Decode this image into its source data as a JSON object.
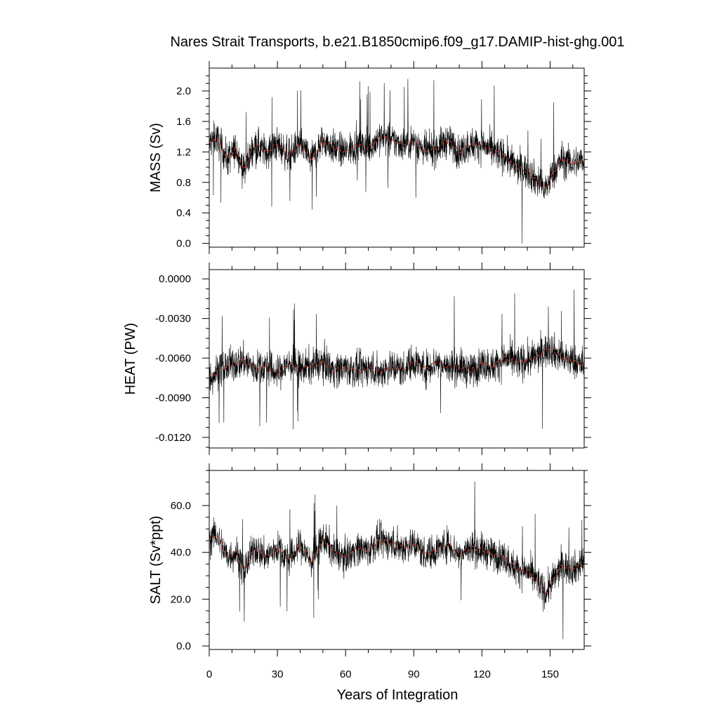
{
  "chart_data": {
    "type": "line",
    "title": "Nares Strait Transports, b.e21.B1850cmip6.f09_g17.DAMIP-hist-ghg.001",
    "xlabel": "Years of Integration",
    "xlim": [
      0,
      165
    ],
    "x_ticks": [
      "0",
      "30",
      "60",
      "90",
      "120",
      "150"
    ],
    "colors": {
      "raw": "#000000",
      "smoothed": "#c0392b"
    },
    "panels": [
      {
        "ylabel": "MASS (Sv)",
        "ylim": [
          -0.05,
          2.3
        ],
        "y_ticks": [
          "0.0",
          "0.4",
          "0.8",
          "1.2",
          "1.6",
          "2.0"
        ],
        "smoothed": {
          "x": [
            0,
            3,
            8,
            12,
            15,
            20,
            25,
            30,
            35,
            40,
            45,
            50,
            55,
            60,
            65,
            70,
            75,
            80,
            85,
            90,
            95,
            100,
            105,
            110,
            115,
            120,
            125,
            130,
            135,
            140,
            145,
            148,
            150,
            155,
            160,
            165
          ],
          "y": [
            1.3,
            1.4,
            1.1,
            1.25,
            0.95,
            1.3,
            1.2,
            1.3,
            1.15,
            1.3,
            1.1,
            1.35,
            1.25,
            1.2,
            1.3,
            1.25,
            1.4,
            1.35,
            1.3,
            1.35,
            1.2,
            1.25,
            1.35,
            1.2,
            1.3,
            1.3,
            1.2,
            1.15,
            1.0,
            0.95,
            0.8,
            0.7,
            0.85,
            1.1,
            1.05,
            1.1
          ]
        },
        "raw_noise": 0.22
      },
      {
        "ylabel": "HEAT (PW)",
        "ylim": [
          -0.0128,
          0.0007
        ],
        "y_ticks": [
          "-0.0120",
          "-0.0090",
          "-0.0060",
          "-0.0030",
          "0.0000"
        ],
        "smoothed": {
          "x": [
            0,
            5,
            10,
            15,
            20,
            25,
            30,
            35,
            40,
            45,
            50,
            55,
            60,
            65,
            70,
            75,
            80,
            85,
            90,
            95,
            100,
            105,
            110,
            115,
            120,
            125,
            130,
            135,
            140,
            145,
            150,
            155,
            160,
            165
          ],
          "y": [
            -0.0075,
            -0.0068,
            -0.0065,
            -0.0062,
            -0.0068,
            -0.0066,
            -0.0072,
            -0.0064,
            -0.0068,
            -0.0066,
            -0.0063,
            -0.0069,
            -0.0067,
            -0.007,
            -0.0067,
            -0.0071,
            -0.0066,
            -0.0069,
            -0.0062,
            -0.0068,
            -0.0063,
            -0.0067,
            -0.0066,
            -0.007,
            -0.0064,
            -0.0066,
            -0.006,
            -0.0063,
            -0.0062,
            -0.0058,
            -0.0052,
            -0.006,
            -0.0062,
            -0.0066
          ]
        },
        "raw_noise": 0.0013
      },
      {
        "ylabel": "SALT (Sv*ppt)",
        "ylim": [
          -1.5,
          75
        ],
        "y_ticks": [
          "0.0",
          "20.0",
          "40.0",
          "60.0"
        ],
        "smoothed": {
          "x": [
            0,
            3,
            8,
            12,
            15,
            20,
            25,
            30,
            35,
            40,
            45,
            50,
            55,
            60,
            65,
            70,
            75,
            80,
            85,
            90,
            95,
            100,
            105,
            110,
            115,
            120,
            125,
            130,
            135,
            140,
            145,
            148,
            150,
            155,
            160,
            165
          ],
          "y": [
            45,
            48,
            38,
            40,
            32,
            42,
            38,
            42,
            37,
            43,
            36,
            46,
            40,
            38,
            42,
            41,
            45,
            44,
            42,
            44,
            39,
            41,
            44,
            39,
            42,
            41,
            39,
            38,
            33,
            32,
            27,
            22,
            26,
            34,
            33,
            35
          ]
        },
        "raw_noise": 7
      }
    ]
  }
}
